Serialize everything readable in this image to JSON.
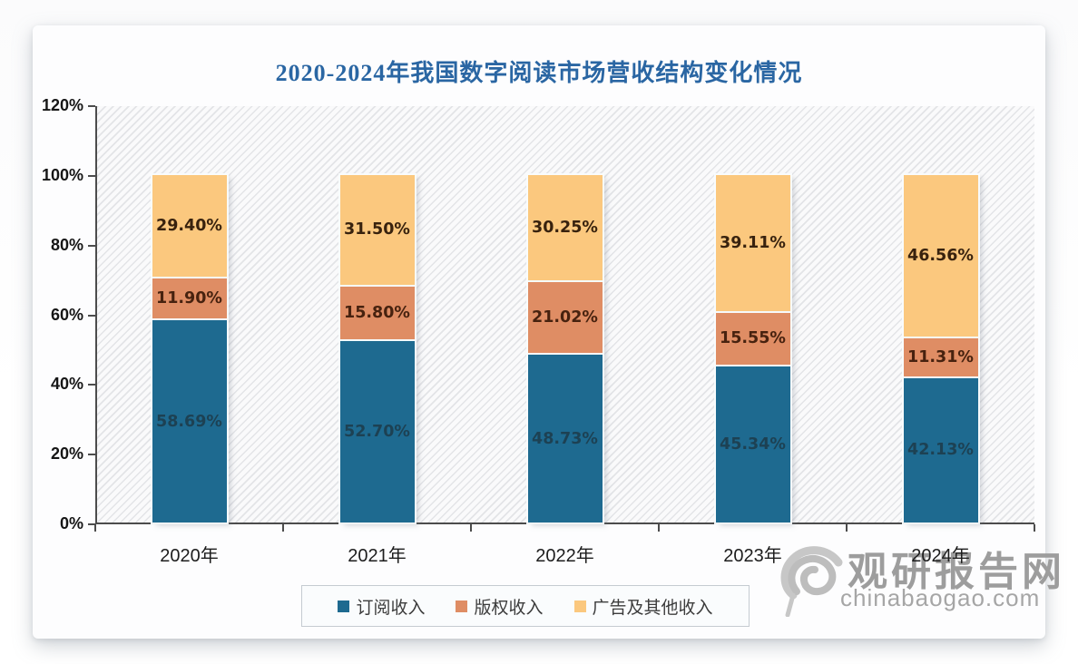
{
  "title": "2020-2024年我国数字阅读市场营收结构变化情况",
  "watermark": {
    "brand": "观研报告网",
    "domain": "chinabaogao.com",
    "logo": "eye-swirl-icon",
    "color": "#9d9d9d"
  },
  "chart_data": {
    "type": "bar",
    "stacked": true,
    "grid": false,
    "legend_position": "bottom",
    "categories": [
      "2020年",
      "2021年",
      "2022年",
      "2023年",
      "2024年"
    ],
    "series": [
      {
        "name": "订阅收入",
        "color": "#1e6a90",
        "label_color": "rgba(28,38,44,0.6)",
        "values": [
          58.69,
          52.7,
          48.73,
          45.34,
          42.13
        ]
      },
      {
        "name": "版权收入",
        "color": "#df8d64",
        "label_color": "#47220f",
        "values": [
          11.9,
          15.8,
          21.02,
          15.55,
          11.31
        ]
      },
      {
        "name": "广告及其他收入",
        "color": "#fbc87e",
        "label_color": "#38220e",
        "values": [
          29.4,
          31.5,
          30.25,
          39.11,
          46.56
        ]
      }
    ],
    "value_label_format": "0.00%",
    "ylabel_ticks": [
      "0%",
      "20%",
      "40%",
      "60%",
      "80%",
      "100%",
      "120%"
    ],
    "ylim": [
      0,
      120
    ],
    "title_color": "#2a66a3",
    "axis_color": "#4c4c4c"
  }
}
